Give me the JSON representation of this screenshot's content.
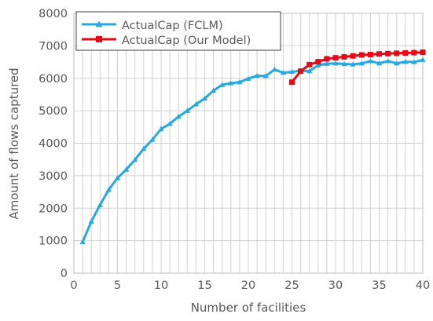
{
  "chart_data": {
    "type": "line",
    "title": "",
    "xlabel": "Number of facilities",
    "ylabel": "Amount of flows captured",
    "xlim": [
      0,
      40
    ],
    "ylim": [
      0,
      8000
    ],
    "x_ticks": [
      "0",
      "5",
      "10",
      "15",
      "20",
      "25",
      "30",
      "35",
      "40"
    ],
    "y_ticks": [
      "0",
      "1000",
      "2000",
      "3000",
      "4000",
      "5000",
      "6000",
      "7000",
      "8000"
    ],
    "grid": true,
    "legend_position": "top-left",
    "series": [
      {
        "name": "ActualCap (FCLM)",
        "color": "#29A8E0",
        "marker": "triangle",
        "x": [
          1,
          2,
          3,
          4,
          5,
          6,
          7,
          8,
          9,
          10,
          11,
          12,
          13,
          14,
          15,
          16,
          17,
          18,
          19,
          20,
          21,
          22,
          23,
          24,
          25,
          26,
          27,
          28,
          29,
          30,
          31,
          32,
          33,
          34,
          35,
          36,
          37,
          38,
          39,
          40
        ],
        "values": [
          960,
          1590,
          2100,
          2570,
          2930,
          3190,
          3490,
          3830,
          4110,
          4440,
          4600,
          4820,
          5000,
          5200,
          5380,
          5620,
          5800,
          5850,
          5880,
          5990,
          6080,
          6070,
          6270,
          6170,
          6200,
          6230,
          6220,
          6400,
          6450,
          6460,
          6440,
          6430,
          6460,
          6530,
          6460,
          6530,
          6460,
          6510,
          6500,
          6570
        ]
      },
      {
        "name": "ActualCap (Our Model)",
        "color": "#E30B17",
        "marker": "square",
        "x": [
          25,
          26,
          27,
          28,
          29,
          30,
          31,
          32,
          33,
          34,
          35,
          36,
          37,
          38,
          39,
          40
        ],
        "values": [
          5880,
          6220,
          6420,
          6510,
          6600,
          6630,
          6660,
          6690,
          6720,
          6730,
          6750,
          6760,
          6770,
          6780,
          6790,
          6800
        ]
      }
    ]
  }
}
